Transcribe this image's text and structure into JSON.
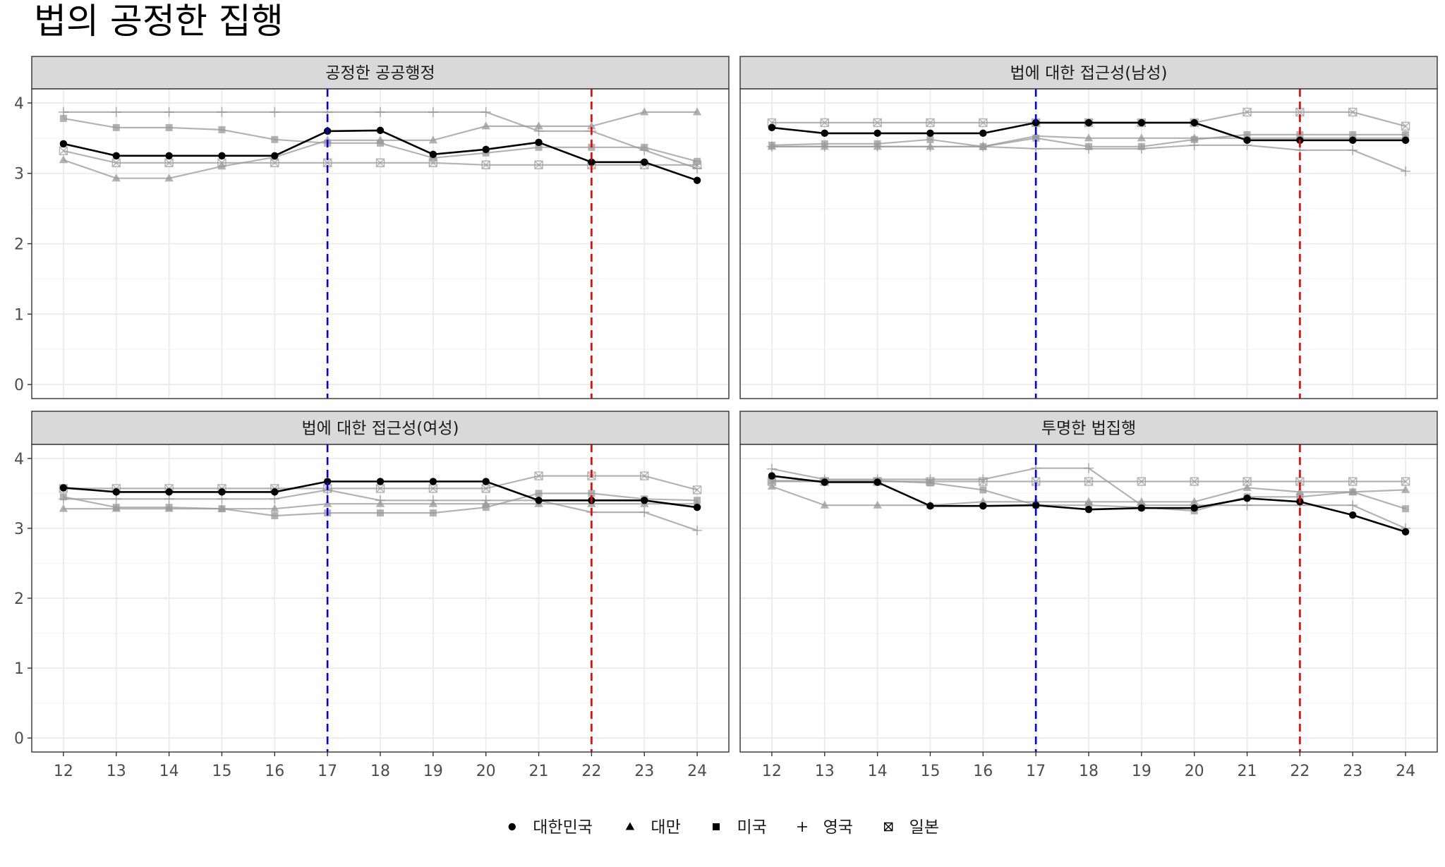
{
  "title": "법의 공정한 집행",
  "colors": {
    "korea": "#000000",
    "others": "#999999",
    "vline_blue": "#0000ee",
    "vline_red": "#ee0000",
    "strip_bg": "#d9d9d9",
    "grid_major": "#ebebeb",
    "grid_minor": "#f5f5f5",
    "panel_border": "#333333"
  },
  "legend": [
    {
      "key": "kr",
      "label": "대한민국",
      "shape": "circle"
    },
    {
      "key": "tw",
      "label": "대만",
      "shape": "triangle"
    },
    {
      "key": "us",
      "label": "미국",
      "shape": "square"
    },
    {
      "key": "uk",
      "label": "영국",
      "shape": "plus"
    },
    {
      "key": "jp",
      "label": "일본",
      "shape": "square-x"
    }
  ],
  "chart_data": [
    {
      "type": "line",
      "title": "공정한 공공행정",
      "x": [
        12,
        13,
        14,
        15,
        16,
        17,
        18,
        19,
        20,
        21,
        22,
        23,
        24
      ],
      "ylim": [
        -0.2,
        4.2
      ],
      "yticks": [
        0,
        1,
        2,
        3,
        4
      ],
      "vlines": [
        {
          "x": 17,
          "color": "blue"
        },
        {
          "x": 22,
          "color": "red"
        }
      ],
      "series": [
        {
          "key": "tw",
          "name": "대만",
          "values": [
            3.19,
            2.93,
            2.93,
            3.1,
            3.23,
            3.47,
            3.47,
            3.47,
            3.67,
            3.67,
            3.67,
            3.87,
            3.87
          ]
        },
        {
          "key": "us",
          "name": "미국",
          "values": [
            3.78,
            3.65,
            3.65,
            3.62,
            3.48,
            3.43,
            3.43,
            3.22,
            3.29,
            3.37,
            3.37,
            3.37,
            3.17
          ]
        },
        {
          "key": "uk",
          "name": "영국",
          "values": [
            3.87,
            3.87,
            3.87,
            3.87,
            3.87,
            3.87,
            3.87,
            3.87,
            3.87,
            3.6,
            3.6,
            3.33,
            3.07
          ]
        },
        {
          "key": "jp",
          "name": "일본",
          "values": [
            3.32,
            3.15,
            3.15,
            3.15,
            3.15,
            3.15,
            3.15,
            3.15,
            3.12,
            3.12,
            3.12,
            3.12,
            3.12
          ]
        },
        {
          "key": "kr",
          "name": "대한민국",
          "values": [
            3.42,
            3.25,
            3.25,
            3.25,
            3.25,
            3.6,
            3.61,
            3.27,
            3.34,
            3.44,
            3.16,
            3.16,
            2.9
          ]
        }
      ]
    },
    {
      "type": "line",
      "title": "법에 대한 접근성(남성)",
      "x": [
        12,
        13,
        14,
        15,
        16,
        17,
        18,
        19,
        20,
        21,
        22,
        23,
        24
      ],
      "ylim": [
        -0.2,
        4.2
      ],
      "yticks": [
        0,
        1,
        2,
        3,
        4
      ],
      "vlines": [
        {
          "x": 17,
          "color": "blue"
        },
        {
          "x": 22,
          "color": "red"
        }
      ],
      "series": [
        {
          "key": "tw",
          "name": "대만",
          "values": [
            3.38,
            3.38,
            3.38,
            3.38,
            3.38,
            3.53,
            3.5,
            3.5,
            3.5,
            3.5,
            3.5,
            3.5,
            3.5
          ]
        },
        {
          "key": "us",
          "name": "미국",
          "values": [
            3.4,
            3.42,
            3.42,
            3.48,
            3.38,
            3.5,
            3.38,
            3.38,
            3.48,
            3.55,
            3.55,
            3.55,
            3.55
          ]
        },
        {
          "key": "uk",
          "name": "영국",
          "values": [
            3.38,
            3.38,
            3.38,
            3.38,
            3.38,
            3.35,
            3.35,
            3.35,
            3.4,
            3.4,
            3.33,
            3.33,
            3.03
          ]
        },
        {
          "key": "jp",
          "name": "일본",
          "values": [
            3.72,
            3.72,
            3.72,
            3.72,
            3.72,
            3.72,
            3.72,
            3.72,
            3.72,
            3.87,
            3.87,
            3.87,
            3.67
          ]
        },
        {
          "key": "kr",
          "name": "대한민국",
          "values": [
            3.65,
            3.57,
            3.57,
            3.57,
            3.57,
            3.72,
            3.72,
            3.72,
            3.72,
            3.47,
            3.47,
            3.47,
            3.47
          ]
        }
      ]
    },
    {
      "type": "line",
      "title": "법에 대한 접근성(여성)",
      "x": [
        12,
        13,
        14,
        15,
        16,
        17,
        18,
        19,
        20,
        21,
        22,
        23,
        24
      ],
      "ylim": [
        -0.2,
        4.2
      ],
      "yticks": [
        0,
        1,
        2,
        3,
        4
      ],
      "vlines": [
        {
          "x": 17,
          "color": "blue"
        },
        {
          "x": 22,
          "color": "red"
        }
      ],
      "series": [
        {
          "key": "tw",
          "name": "대만",
          "values": [
            3.28,
            3.28,
            3.28,
            3.28,
            3.28,
            3.35,
            3.35,
            3.35,
            3.35,
            3.35,
            3.35,
            3.35,
            3.35
          ]
        },
        {
          "key": "us",
          "name": "미국",
          "values": [
            3.45,
            3.3,
            3.3,
            3.28,
            3.18,
            3.22,
            3.22,
            3.22,
            3.3,
            3.5,
            3.5,
            3.42,
            3.4
          ]
        },
        {
          "key": "uk",
          "name": "영국",
          "values": [
            3.42,
            3.42,
            3.42,
            3.42,
            3.42,
            3.55,
            3.4,
            3.4,
            3.4,
            3.4,
            3.23,
            3.23,
            2.97
          ]
        },
        {
          "key": "jp",
          "name": "일본",
          "values": [
            3.57,
            3.57,
            3.57,
            3.57,
            3.57,
            3.57,
            3.57,
            3.57,
            3.57,
            3.75,
            3.75,
            3.75,
            3.55
          ]
        },
        {
          "key": "kr",
          "name": "대한민국",
          "values": [
            3.58,
            3.52,
            3.52,
            3.52,
            3.52,
            3.67,
            3.67,
            3.67,
            3.67,
            3.4,
            3.4,
            3.4,
            3.3
          ]
        }
      ]
    },
    {
      "type": "line",
      "title": "투명한 법집행",
      "x": [
        12,
        13,
        14,
        15,
        16,
        17,
        18,
        19,
        20,
        21,
        22,
        23,
        24
      ],
      "ylim": [
        -0.2,
        4.2
      ],
      "yticks": [
        0,
        1,
        2,
        3,
        4
      ],
      "vlines": [
        {
          "x": 17,
          "color": "blue"
        },
        {
          "x": 22,
          "color": "red"
        }
      ],
      "series": [
        {
          "key": "tw",
          "name": "대만",
          "values": [
            3.6,
            3.33,
            3.33,
            3.33,
            3.38,
            3.38,
            3.38,
            3.38,
            3.38,
            3.58,
            3.52,
            3.52,
            3.55
          ]
        },
        {
          "key": "us",
          "name": "미국",
          "values": [
            3.68,
            3.68,
            3.68,
            3.65,
            3.55,
            3.33,
            3.33,
            3.3,
            3.25,
            3.45,
            3.45,
            3.52,
            3.28
          ]
        },
        {
          "key": "uk",
          "name": "영국",
          "values": [
            3.85,
            3.7,
            3.7,
            3.7,
            3.7,
            3.86,
            3.86,
            3.33,
            3.33,
            3.33,
            3.33,
            3.33,
            3.0
          ]
        },
        {
          "key": "jp",
          "name": "일본",
          "values": [
            3.67,
            3.67,
            3.67,
            3.67,
            3.67,
            3.67,
            3.67,
            3.67,
            3.67,
            3.67,
            3.67,
            3.67,
            3.67
          ]
        },
        {
          "key": "kr",
          "name": "대한민국",
          "values": [
            3.75,
            3.66,
            3.66,
            3.32,
            3.32,
            3.33,
            3.27,
            3.29,
            3.29,
            3.43,
            3.38,
            3.19,
            2.95
          ]
        }
      ]
    }
  ]
}
